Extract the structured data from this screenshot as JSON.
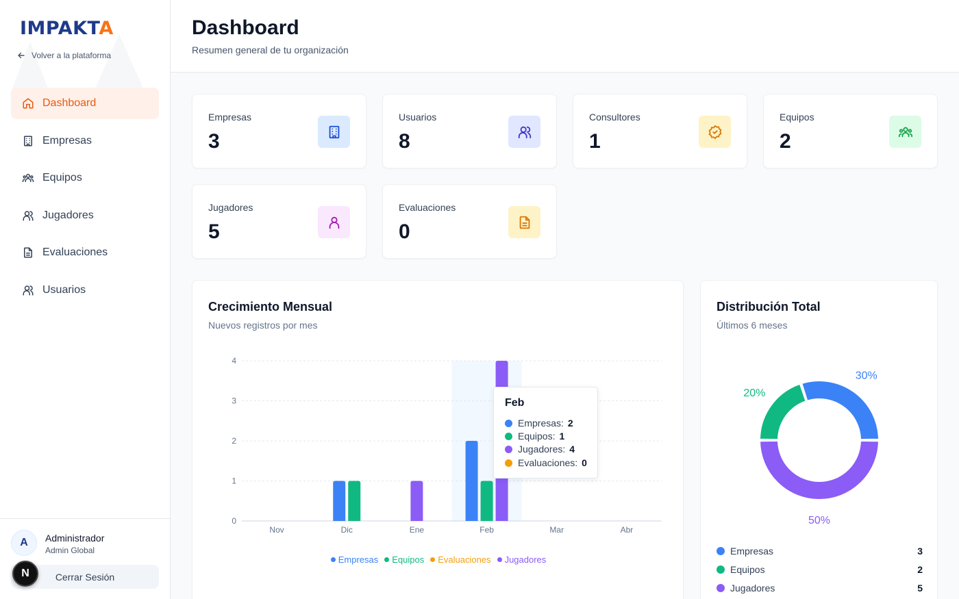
{
  "brand": {
    "logo_main": "IMPAKT",
    "logo_accent": "A"
  },
  "sidebar": {
    "back_label": "Volver a la plataforma",
    "items": [
      {
        "label": "Dashboard",
        "icon": "home-icon",
        "active": true
      },
      {
        "label": "Empresas",
        "icon": "building-icon"
      },
      {
        "label": "Equipos",
        "icon": "team-icon"
      },
      {
        "label": "Jugadores",
        "icon": "users-icon"
      },
      {
        "label": "Evaluaciones",
        "icon": "document-icon"
      },
      {
        "label": "Usuarios",
        "icon": "users-icon"
      }
    ],
    "user": {
      "initial": "A",
      "name": "Administrador",
      "role": "Admin Global"
    },
    "logout_label": "Cerrar Sesión",
    "badge_letter": "N"
  },
  "header": {
    "title": "Dashboard",
    "subtitle": "Resumen general de tu organización"
  },
  "stats": [
    {
      "label": "Empresas",
      "value": "3",
      "icon": "building-icon",
      "color": "#1d4ed8",
      "bg": "#dbeafe"
    },
    {
      "label": "Usuarios",
      "value": "8",
      "icon": "users-icon",
      "color": "#4338ca",
      "bg": "#e0e7ff"
    },
    {
      "label": "Consultores",
      "value": "1",
      "icon": "badge-check-icon",
      "color": "#d97706",
      "bg": "#fef3c7"
    },
    {
      "label": "Equipos",
      "value": "2",
      "icon": "team-icon",
      "color": "#16a34a",
      "bg": "#dcfce7"
    },
    {
      "label": "Jugadores",
      "value": "5",
      "icon": "user-icon",
      "color": "#a21caf",
      "bg": "#fae8ff"
    },
    {
      "label": "Evaluaciones",
      "value": "0",
      "icon": "document-icon",
      "color": "#d97706",
      "bg": "#fef3c7"
    }
  ],
  "growth": {
    "title": "Crecimiento Mensual",
    "subtitle": "Nuevos registros por mes",
    "tooltip": {
      "title": "Feb",
      "rows": [
        {
          "label": "Empresas:",
          "value": "2",
          "color": "#3b82f6"
        },
        {
          "label": "Equipos:",
          "value": "1",
          "color": "#10b981"
        },
        {
          "label": "Jugadores:",
          "value": "4",
          "color": "#8b5cf6"
        },
        {
          "label": "Evaluaciones:",
          "value": "0",
          "color": "#f59e0b"
        }
      ]
    },
    "legend": [
      {
        "label": "Empresas",
        "color": "#3b82f6"
      },
      {
        "label": "Equipos",
        "color": "#10b981"
      },
      {
        "label": "Evaluaciones",
        "color": "#f59e0b"
      },
      {
        "label": "Jugadores",
        "color": "#8b5cf6"
      }
    ]
  },
  "distribution": {
    "title": "Distribución Total",
    "subtitle": "Últimos 6 meses",
    "items": [
      {
        "label": "Empresas",
        "value": "3",
        "color": "#3b82f6"
      },
      {
        "label": "Equipos",
        "value": "2",
        "color": "#10b981"
      },
      {
        "label": "Jugadores",
        "value": "5",
        "color": "#8b5cf6"
      }
    ]
  },
  "chart_data": [
    {
      "type": "bar",
      "title": "Crecimiento Mensual",
      "subtitle": "Nuevos registros por mes",
      "categories": [
        "Nov",
        "Dic",
        "Ene",
        "Feb",
        "Mar",
        "Abr"
      ],
      "series": [
        {
          "name": "Empresas",
          "values": [
            0,
            1,
            0,
            2,
            0,
            0
          ],
          "color": "#3b82f6"
        },
        {
          "name": "Equipos",
          "values": [
            0,
            1,
            0,
            1,
            0,
            0
          ],
          "color": "#10b981"
        },
        {
          "name": "Evaluaciones",
          "values": [
            0,
            0,
            0,
            0,
            0,
            0
          ],
          "color": "#f59e0b"
        },
        {
          "name": "Jugadores",
          "values": [
            0,
            0,
            1,
            4,
            0,
            0
          ],
          "color": "#8b5cf6"
        }
      ],
      "yticks": [
        0,
        1,
        2,
        3,
        4
      ],
      "ylim": [
        0,
        4
      ],
      "highlighted_category": "Feb",
      "legend_position": "bottom",
      "grid": true
    },
    {
      "type": "pie",
      "title": "Distribución Total",
      "subtitle": "Últimos 6 meses",
      "donut": true,
      "slices": [
        {
          "name": "Empresas",
          "value": 3,
          "label": "30%",
          "color": "#3b82f6"
        },
        {
          "name": "Equipos",
          "value": 2,
          "label": "20%",
          "color": "#10b981"
        },
        {
          "name": "Jugadores",
          "value": 5,
          "label": "50%",
          "color": "#8b5cf6"
        }
      ]
    }
  ]
}
